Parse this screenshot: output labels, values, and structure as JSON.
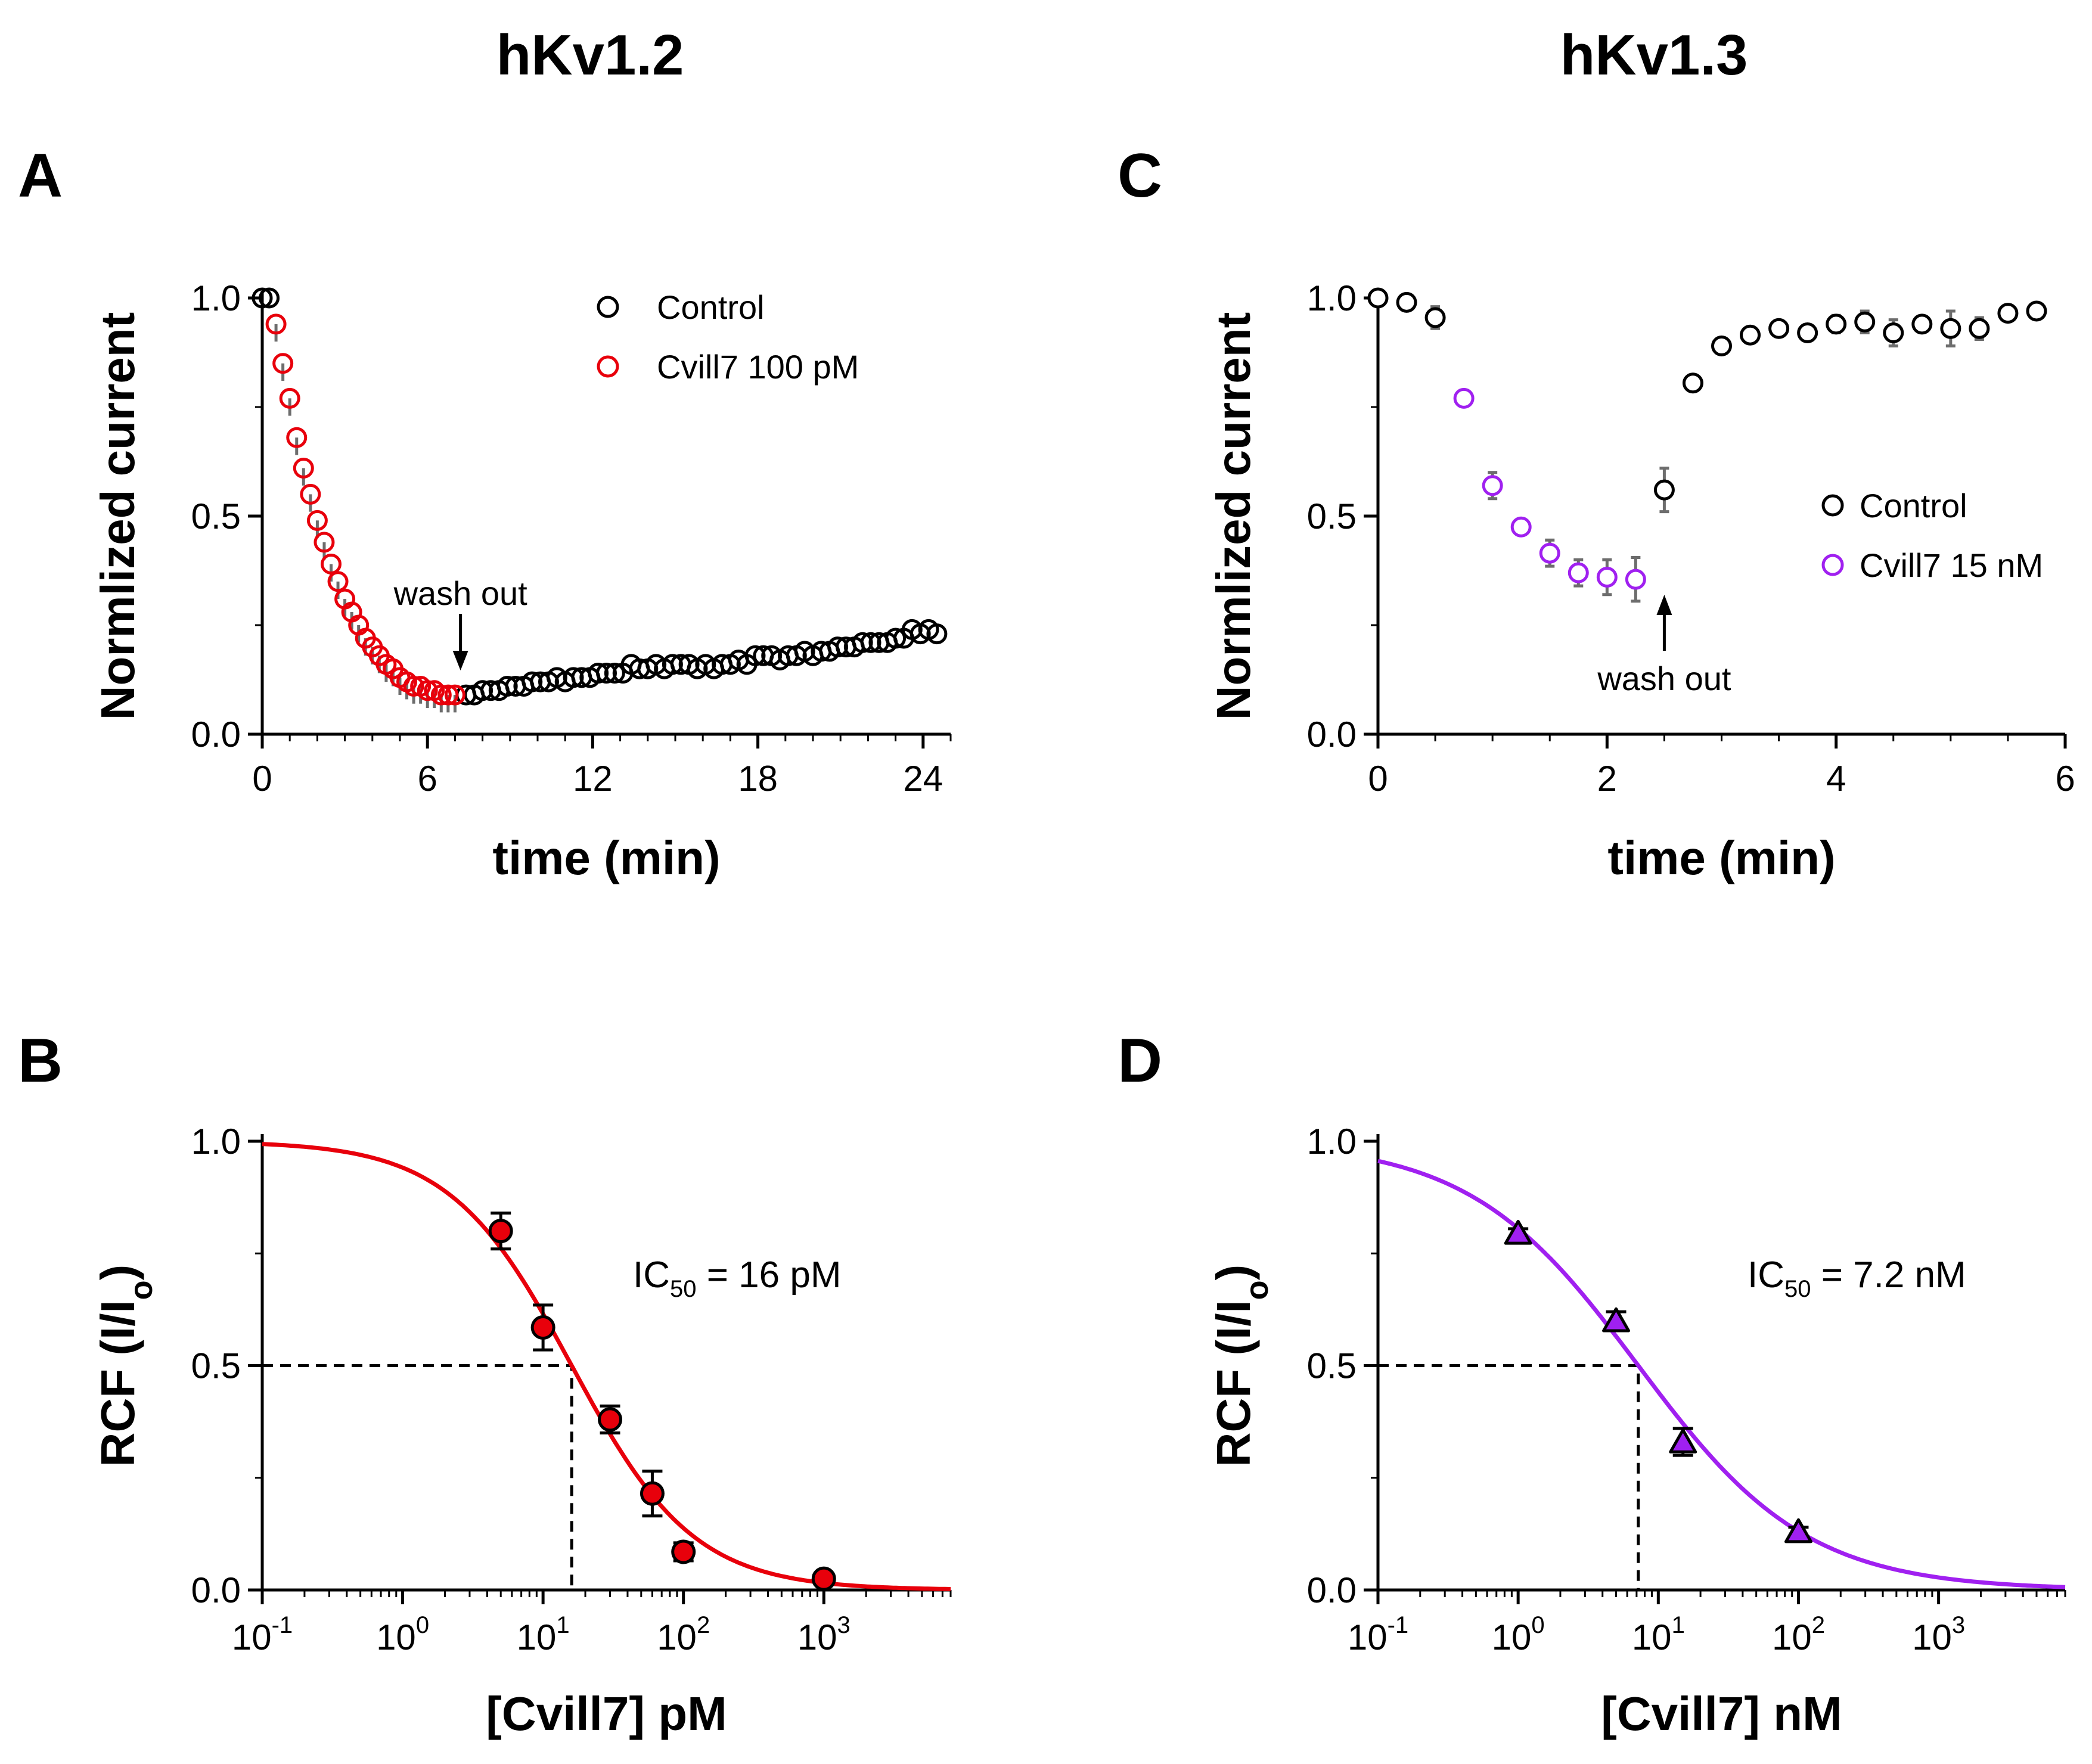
{
  "titles": {
    "left": "hKv1.2",
    "right": "hKv1.3"
  },
  "panels": {
    "A": "A",
    "B": "B",
    "C": "C",
    "D": "D"
  },
  "colors": {
    "red": "#e8000b",
    "purple": "#a020f0",
    "black": "#000000",
    "error_bar": "#6d6d6d"
  },
  "chart_data": [
    {
      "id": "A",
      "type": "scatter",
      "title": "hKv1.2",
      "xlabel": "time (min)",
      "ylabel": "Normlized current",
      "xlim": [
        0,
        25
      ],
      "ylim": [
        0,
        1
      ],
      "xticks": [
        "0",
        "6",
        "12",
        "18",
        "24"
      ],
      "yticks": [
        "0.0",
        "0.5",
        "1.0"
      ],
      "annotation": "wash out",
      "annotation_x": 7.2,
      "legend": [
        "Control",
        "Cvill7 100 pM"
      ],
      "series": [
        {
          "name": "Control",
          "color": "#000000",
          "x": [
            0,
            0.25,
            7.4,
            7.7,
            8.0,
            8.3,
            8.6,
            8.9,
            9.2,
            9.5,
            9.8,
            10.1,
            10.4,
            10.7,
            11.0,
            11.3,
            11.6,
            11.9,
            12.2,
            12.5,
            12.8,
            13.1,
            13.4,
            13.7,
            14.0,
            14.3,
            14.6,
            14.9,
            15.2,
            15.5,
            15.8,
            16.1,
            16.4,
            16.7,
            17.0,
            17.3,
            17.6,
            17.9,
            18.2,
            18.5,
            18.8,
            19.1,
            19.4,
            19.7,
            20.0,
            20.3,
            20.6,
            20.9,
            21.2,
            21.5,
            21.8,
            22.1,
            22.4,
            22.7,
            23.0,
            23.3,
            23.6,
            23.9,
            24.2,
            24.5
          ],
          "y": [
            1.0,
            1.0,
            0.09,
            0.09,
            0.1,
            0.1,
            0.1,
            0.11,
            0.11,
            0.11,
            0.12,
            0.12,
            0.12,
            0.13,
            0.12,
            0.13,
            0.13,
            0.13,
            0.14,
            0.14,
            0.14,
            0.14,
            0.16,
            0.15,
            0.15,
            0.16,
            0.15,
            0.16,
            0.16,
            0.16,
            0.15,
            0.16,
            0.15,
            0.16,
            0.16,
            0.17,
            0.16,
            0.18,
            0.18,
            0.18,
            0.17,
            0.18,
            0.18,
            0.19,
            0.18,
            0.19,
            0.19,
            0.2,
            0.2,
            0.2,
            0.21,
            0.21,
            0.21,
            0.21,
            0.22,
            0.22,
            0.24,
            0.23,
            0.24,
            0.23
          ]
        },
        {
          "name": "Cvill7 100 pM",
          "color": "#e8000b",
          "x": [
            0.5,
            0.75,
            1.0,
            1.25,
            1.5,
            1.75,
            2.0,
            2.25,
            2.5,
            2.75,
            3.0,
            3.25,
            3.5,
            3.75,
            4.0,
            4.25,
            4.5,
            4.75,
            5.0,
            5.25,
            5.5,
            5.75,
            6.0,
            6.25,
            6.5,
            6.75,
            7.0
          ],
          "y": [
            0.94,
            0.85,
            0.77,
            0.68,
            0.61,
            0.55,
            0.49,
            0.44,
            0.39,
            0.35,
            0.31,
            0.28,
            0.25,
            0.22,
            0.2,
            0.18,
            0.16,
            0.15,
            0.13,
            0.12,
            0.11,
            0.11,
            0.1,
            0.1,
            0.09,
            0.09,
            0.09
          ]
        }
      ]
    },
    {
      "id": "B",
      "type": "scatter",
      "xlabel": "[Cvill7] pM",
      "ylabel": "RCF (I/Io)",
      "xscale": "log",
      "xlim": [
        0.1,
        8000
      ],
      "ylim": [
        0,
        1
      ],
      "xticks": [
        "10",
        "10",
        "10",
        "10",
        "10"
      ],
      "xtick_exponents": [
        "-1",
        "0",
        "1",
        "2",
        "3"
      ],
      "yticks": [
        "0.0",
        "0.5",
        "1.0"
      ],
      "ic50_text": {
        "prefix": "IC",
        "sub": "50",
        "suffix": " = 16 pM"
      },
      "ic50": 16,
      "hill": 1.0,
      "fit_color": "#e8000b",
      "x": [
        5,
        10,
        30,
        60,
        100,
        1000
      ],
      "y": [
        0.8,
        0.585,
        0.38,
        0.215,
        0.085,
        0.025
      ],
      "err": [
        0.04,
        0.05,
        0.03,
        0.05,
        0.02,
        0.01
      ]
    },
    {
      "id": "C",
      "type": "scatter",
      "title": "hKv1.3",
      "xlabel": "time (min)",
      "ylabel": "Normlized current",
      "xlim": [
        0,
        6
      ],
      "ylim": [
        0,
        1
      ],
      "xticks": [
        "0",
        "2",
        "4",
        "6"
      ],
      "yticks": [
        "0.0",
        "0.5",
        "1.0"
      ],
      "annotation": "wash out",
      "annotation_x": 2.5,
      "legend": [
        "Control",
        "Cvill7 15 nM"
      ],
      "series": [
        {
          "name": "Control",
          "color": "#000000",
          "x": [
            0,
            0.25,
            0.5,
            2.5,
            2.75,
            3.0,
            3.25,
            3.5,
            3.75,
            4.0,
            4.25,
            4.5,
            4.75,
            5.0,
            5.25,
            5.5,
            5.75
          ],
          "y": [
            1.0,
            0.99,
            0.955,
            0.56,
            0.805,
            0.89,
            0.915,
            0.93,
            0.92,
            0.94,
            0.945,
            0.92,
            0.94,
            0.93,
            0.93,
            0.965,
            0.97
          ],
          "err": [
            0,
            0,
            0.025,
            0.05,
            0,
            0,
            0,
            0,
            0,
            0.02,
            0.025,
            0.03,
            0,
            0.04,
            0.025,
            0,
            0
          ]
        },
        {
          "name": "Cvill7 15 nM",
          "color": "#a020f0",
          "x": [
            0.75,
            1.0,
            1.25,
            1.5,
            1.75,
            2.0,
            2.25
          ],
          "y": [
            0.77,
            0.57,
            0.475,
            0.415,
            0.37,
            0.36,
            0.355
          ],
          "err": [
            0,
            0.03,
            0,
            0.03,
            0.03,
            0.04,
            0.05
          ]
        }
      ]
    },
    {
      "id": "D",
      "type": "scatter",
      "xlabel": "[Cvill7] nM",
      "ylabel": "RCF (I/Io)",
      "xscale": "log",
      "xlim": [
        0.1,
        8000
      ],
      "ylim": [
        0,
        1
      ],
      "xticks": [
        "10",
        "10",
        "10",
        "10",
        "10"
      ],
      "xtick_exponents": [
        "-1",
        "0",
        "1",
        "2",
        "3"
      ],
      "yticks": [
        "0.0",
        "0.5",
        "1.0"
      ],
      "ic50_text": {
        "prefix": "IC",
        "sub": "50",
        "suffix": " = 7.2 nM"
      },
      "ic50": 7.2,
      "hill": 0.72,
      "fit_color": "#a020f0",
      "x": [
        1,
        5,
        15,
        100
      ],
      "y": [
        0.795,
        0.6,
        0.33,
        0.13
      ],
      "err": [
        0.01,
        0.02,
        0.03,
        0.01
      ]
    }
  ]
}
